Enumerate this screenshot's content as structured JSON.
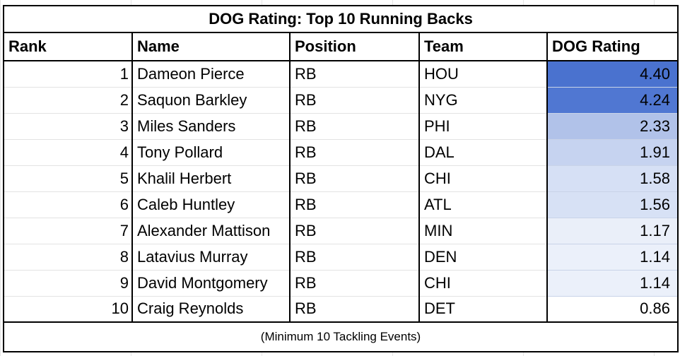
{
  "title": "DOG Rating: Top 10 Running Backs",
  "columns": [
    "Rank",
    "Name",
    "Position",
    "Team",
    "DOG Rating"
  ],
  "rows": [
    {
      "rank": "1",
      "name": "Dameon Pierce",
      "position": "RB",
      "team": "HOU",
      "rating": "4.40",
      "color": "#4a72cf"
    },
    {
      "rank": "2",
      "name": "Saquon Barkley",
      "position": "RB",
      "team": "NYG",
      "rating": "4.24",
      "color": "#5077d2"
    },
    {
      "rank": "3",
      "name": "Miles Sanders",
      "position": "RB",
      "team": "PHI",
      "rating": "2.33",
      "color": "#b1c2e9"
    },
    {
      "rank": "4",
      "name": "Tony Pollard",
      "position": "RB",
      "team": "DAL",
      "rating": "1.91",
      "color": "#c6d3f0"
    },
    {
      "rank": "5",
      "name": "Khalil Herbert",
      "position": "RB",
      "team": "CHI",
      "rating": "1.58",
      "color": "#d6e0f5"
    },
    {
      "rank": "6",
      "name": "Caleb Huntley",
      "position": "RB",
      "team": "ATL",
      "rating": "1.56",
      "color": "#d7e1f5"
    },
    {
      "rank": "7",
      "name": "Alexander Mattison",
      "position": "RB",
      "team": "MIN",
      "rating": "1.17",
      "color": "#eaeff9"
    },
    {
      "rank": "8",
      "name": "Latavius Murray",
      "position": "RB",
      "team": "DEN",
      "rating": "1.14",
      "color": "#ebf0fa"
    },
    {
      "rank": "9",
      "name": "David Montgomery",
      "position": "RB",
      "team": "CHI",
      "rating": "1.14",
      "color": "#ebf0fa"
    },
    {
      "rank": "10",
      "name": "Craig Reynolds",
      "position": "RB",
      "team": "DET",
      "rating": "0.86",
      "color": "#ffffff"
    }
  ],
  "footer": "(Minimum 10 Tackling Events)"
}
